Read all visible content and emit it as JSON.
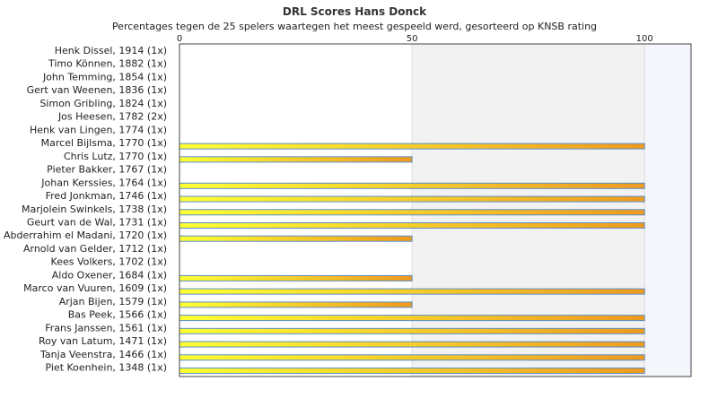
{
  "chart_data": {
    "type": "bar",
    "orientation": "horizontal",
    "title": "DRL Scores Hans Donck",
    "subtitle": "Percentages tegen de 25 spelers waartegen het meest gespeeld werd, gesorteerd op KNSB rating",
    "xlabel": "",
    "ylabel": "",
    "xlim": [
      0,
      110
    ],
    "x_ticks": [
      0,
      50,
      100
    ],
    "grid": true,
    "legend": "none",
    "bar_gradient": [
      "#ffff33",
      "#ee9a1f"
    ],
    "bar_border": "#5a8fc8",
    "band_colors": [
      "#ffffff",
      "#f2f2f2",
      "#f5f6fb"
    ],
    "categories": [
      "Henk Dissel, 1914 (1x)",
      "Timo Können, 1882 (1x)",
      "John Temming, 1854 (1x)",
      "Gert van Weenen, 1836 (1x)",
      "Simon Gribling, 1824 (1x)",
      "Jos Heesen, 1782 (2x)",
      "Henk van Lingen, 1774 (1x)",
      "Marcel Bijlsma, 1770 (1x)",
      "Chris Lutz, 1770 (1x)",
      "Pieter Bakker, 1767 (1x)",
      "Johan Kerssies, 1764 (1x)",
      "Fred Jonkman, 1746 (1x)",
      "Marjolein Swinkels, 1738 (1x)",
      "Geurt van de Wal, 1731 (1x)",
      "Abderrahim el Madani, 1720 (1x)",
      "Arnold van Gelder, 1712 (1x)",
      "Kees Volkers, 1702 (1x)",
      "Aldo Oxener, 1684 (1x)",
      "Marco van Vuuren, 1609 (1x)",
      "Arjan Bijen, 1579 (1x)",
      "Bas Peek, 1566 (1x)",
      "Frans Janssen, 1561 (1x)",
      "Roy van Latum, 1471 (1x)",
      "Tanja Veenstra, 1466 (1x)",
      "Piet Koenhein, 1348 (1x)"
    ],
    "values": [
      0,
      0,
      0,
      0,
      0,
      0,
      0,
      100,
      50,
      0,
      100,
      100,
      100,
      100,
      50,
      0,
      0,
      50,
      100,
      50,
      100,
      100,
      100,
      100,
      100
    ]
  }
}
